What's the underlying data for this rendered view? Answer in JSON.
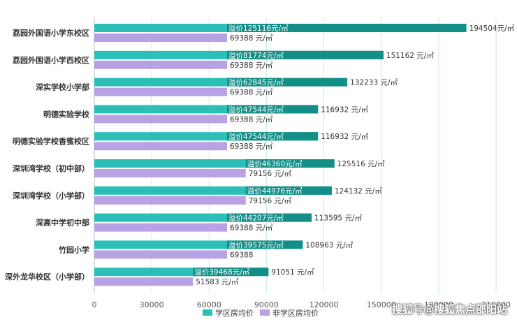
{
  "chart_data": {
    "type": "bar",
    "orientation": "horizontal",
    "categories": [
      "荔园外国语小学东校区",
      "荔园外国语小学西校区",
      "深实学校小学部",
      "明德实验学校",
      "明德实验学校香蜜校区",
      "深圳湾学校（初中部）",
      "深圳湾学校（小学部）",
      "深高中学初中部",
      "竹园小学",
      "深外龙华校区（小学部）"
    ],
    "series": [
      {
        "name": "学区房均价",
        "color": "#2bbfb8",
        "values": [
          194504,
          151162,
          132233,
          116932,
          116932,
          125516,
          124132,
          113595,
          108963,
          91051
        ],
        "value_labels": [
          "194504元/㎡",
          "151162 元/㎡",
          "132233 元/㎡",
          "116932 元/㎡",
          "116932 元/㎡",
          "125516 元/㎡",
          "124132 元/㎡",
          "113595 元/㎡",
          "108963 元/㎡",
          "91051 元/㎡"
        ],
        "premium_labels": [
          "溢价125116元/㎡",
          "溢价81774元/㎡",
          "溢价62845元/㎡",
          "溢价47544元/㎡",
          "溢价47544元/㎡",
          "溢价46360元/㎡",
          "溢价44976元/㎡",
          "溢价44207元/㎡",
          "溢价39575元/㎡",
          "溢价39468元/㎡"
        ]
      },
      {
        "name": "非学区房均价",
        "color": "#b9a2e3",
        "values": [
          69388,
          69388,
          69388,
          69388,
          69388,
          79156,
          79156,
          69388,
          69388,
          51583
        ],
        "value_labels": [
          "69388 元/㎡",
          "69388 元/㎡",
          "69388 元/㎡",
          "69388 元/㎡",
          "69388 元/㎡",
          "79156 元/㎡",
          "79156 元/㎡",
          "69388 元/㎡",
          "69388",
          "51583 元/㎡"
        ]
      }
    ],
    "xlim": [
      0,
      210000
    ],
    "xticks": [
      0,
      30000,
      60000,
      90000,
      120000,
      150000,
      180000,
      210000
    ],
    "xtick_labels": [
      "0",
      "30000",
      "60000",
      "90000",
      "120000",
      "150000",
      "180000",
      "210000"
    ],
    "grid": true,
    "legend_position": "bottom-left",
    "title": "",
    "xlabel": "",
    "ylabel": ""
  },
  "colors": {
    "premium_dark": "#148f88",
    "grid": "#c9ece8"
  },
  "watermark": "搜狐号@搜狐焦点邵阳站"
}
